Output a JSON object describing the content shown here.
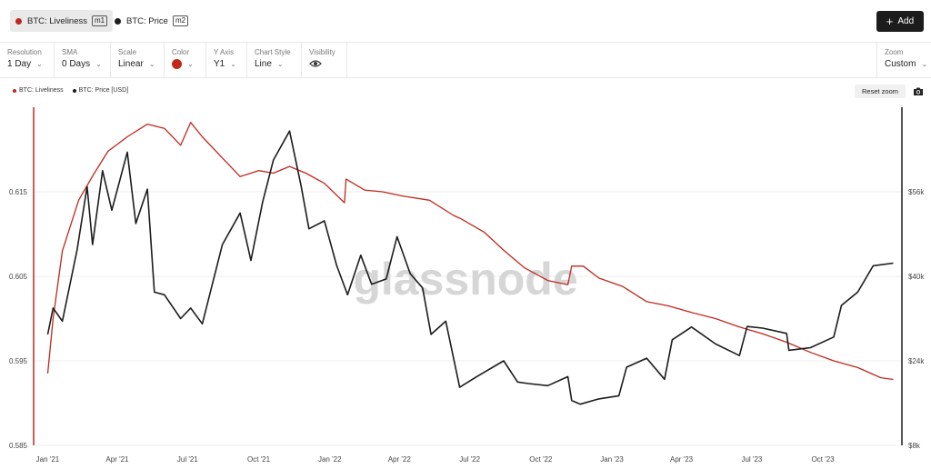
{
  "metrics": [
    {
      "label": "BTC: Liveliness",
      "tag": "m1",
      "color": "#c0281e",
      "active": true
    },
    {
      "label": "BTC: Price",
      "tag": "m2",
      "color": "#1c1c1c",
      "active": false
    }
  ],
  "add_label": "Add",
  "toolbar": {
    "resolution": {
      "label": "Resolution",
      "value": "1 Day"
    },
    "sma": {
      "label": "SMA",
      "value": "0 Days"
    },
    "scale": {
      "label": "Scale",
      "value": "Linear"
    },
    "color": {
      "label": "Color",
      "value": "#c0281e"
    },
    "yaxis": {
      "label": "Y Axis",
      "value": "Y1"
    },
    "chart_style": {
      "label": "Chart Style",
      "value": "Line"
    },
    "visibility": {
      "label": "Visibility",
      "icon": "eye-icon"
    },
    "zoom": {
      "label": "Zoom",
      "value": "Custom"
    }
  },
  "legend": [
    {
      "label": "BTC: Liveliness",
      "color": "#c0281e"
    },
    {
      "label": "BTC: Price [USD]",
      "color": "#1c1c1c"
    }
  ],
  "reset_zoom": "Reset zoom",
  "camera_icon": "camera-icon",
  "watermark": "glassnode",
  "chart_data": {
    "type": "line",
    "x_ticks": [
      "Jan '21",
      "Apr '21",
      "Jul '21",
      "Oct '21",
      "Jan '22",
      "Apr '22",
      "Jul '22",
      "Oct '22",
      "Jan '23",
      "Apr '23",
      "Jul '23",
      "Oct '23"
    ],
    "y_left_ticks": [
      "0.615",
      "0.605",
      "0.595",
      "0.585"
    ],
    "y_left_range": [
      0.585,
      0.625
    ],
    "y_right_ticks": [
      "$56k",
      "$40k",
      "$24k",
      "$8k"
    ],
    "y_right_range": [
      8000,
      72000
    ],
    "grid": true,
    "series": [
      {
        "name": "BTC: Liveliness",
        "axis": "left",
        "color": "#c0281e",
        "x": [
          "2021-01-01",
          "2021-01-08",
          "2021-01-20",
          "2021-02-10",
          "2021-03-01",
          "2021-03-20",
          "2021-04-14",
          "2021-05-10",
          "2021-06-01",
          "2021-06-22",
          "2021-07-05",
          "2021-07-20",
          "2021-08-15",
          "2021-09-07",
          "2021-10-01",
          "2021-10-20",
          "2021-11-10",
          "2021-12-01",
          "2021-12-25",
          "2022-01-20",
          "2022-01-22",
          "2022-02-15",
          "2022-03-10",
          "2022-04-05",
          "2022-05-10",
          "2022-06-10",
          "2022-06-20",
          "2022-07-20",
          "2022-08-15",
          "2022-09-10",
          "2022-10-10",
          "2022-11-05",
          "2022-11-10",
          "2022-11-25",
          "2022-12-15",
          "2023-01-15",
          "2023-02-15",
          "2023-03-15",
          "2023-04-15",
          "2023-05-15",
          "2023-06-15",
          "2023-07-15",
          "2023-08-15",
          "2023-09-15",
          "2023-10-15",
          "2023-11-15",
          "2023-12-15",
          "2023-12-31"
        ],
        "values": [
          0.5935,
          0.6,
          0.608,
          0.614,
          0.617,
          0.6198,
          0.6215,
          0.623,
          0.6225,
          0.6205,
          0.6232,
          0.6215,
          0.619,
          0.6168,
          0.6175,
          0.6172,
          0.618,
          0.6172,
          0.616,
          0.6137,
          0.6165,
          0.6152,
          0.615,
          0.6145,
          0.614,
          0.6122,
          0.6118,
          0.6102,
          0.608,
          0.606,
          0.6045,
          0.604,
          0.6062,
          0.6062,
          0.6048,
          0.6038,
          0.602,
          0.6015,
          0.6007,
          0.6,
          0.599,
          0.5982,
          0.5972,
          0.596,
          0.595,
          0.5942,
          0.593,
          0.5928
        ]
      },
      {
        "name": "BTC: Price",
        "axis": "right",
        "color": "#1c1c1c",
        "x": [
          "2021-01-01",
          "2021-01-08",
          "2021-01-20",
          "2021-02-08",
          "2021-02-21",
          "2021-02-28",
          "2021-03-13",
          "2021-03-25",
          "2021-04-14",
          "2021-04-25",
          "2021-05-10",
          "2021-05-19",
          "2021-06-01",
          "2021-06-22",
          "2021-07-05",
          "2021-07-20",
          "2021-08-15",
          "2021-09-07",
          "2021-09-21",
          "2021-10-06",
          "2021-10-20",
          "2021-11-10",
          "2021-11-25",
          "2021-12-05",
          "2021-12-25",
          "2022-01-10",
          "2022-01-24",
          "2022-02-10",
          "2022-02-24",
          "2022-03-15",
          "2022-03-29",
          "2022-04-15",
          "2022-05-01",
          "2022-05-12",
          "2022-05-31",
          "2022-06-13",
          "2022-06-18",
          "2022-07-10",
          "2022-08-14",
          "2022-09-01",
          "2022-09-15",
          "2022-10-10",
          "2022-11-05",
          "2022-11-10",
          "2022-11-21",
          "2022-12-15",
          "2023-01-10",
          "2023-01-20",
          "2023-02-15",
          "2023-03-10",
          "2023-03-20",
          "2023-04-14",
          "2023-05-15",
          "2023-06-15",
          "2023-06-25",
          "2023-07-15",
          "2023-08-15",
          "2023-08-18",
          "2023-09-15",
          "2023-10-15",
          "2023-10-25",
          "2023-11-15",
          "2023-12-05",
          "2023-12-31"
        ],
        "values": [
          29000,
          34000,
          31500,
          45000,
          57000,
          46000,
          60000,
          52500,
          63500,
          50000,
          56500,
          37000,
          36500,
          32000,
          34000,
          31000,
          46000,
          52000,
          43000,
          54000,
          62000,
          67500,
          57000,
          49000,
          50500,
          42000,
          36500,
          44000,
          38500,
          39500,
          47500,
          40500,
          37800,
          29000,
          31500,
          22500,
          19000,
          21000,
          24000,
          20000,
          19700,
          19300,
          21000,
          16500,
          15800,
          16800,
          17400,
          22800,
          24500,
          20500,
          28000,
          30400,
          27200,
          25000,
          30500,
          30200,
          29200,
          26000,
          26500,
          28500,
          34500,
          37000,
          42000,
          42500
        ]
      }
    ]
  }
}
